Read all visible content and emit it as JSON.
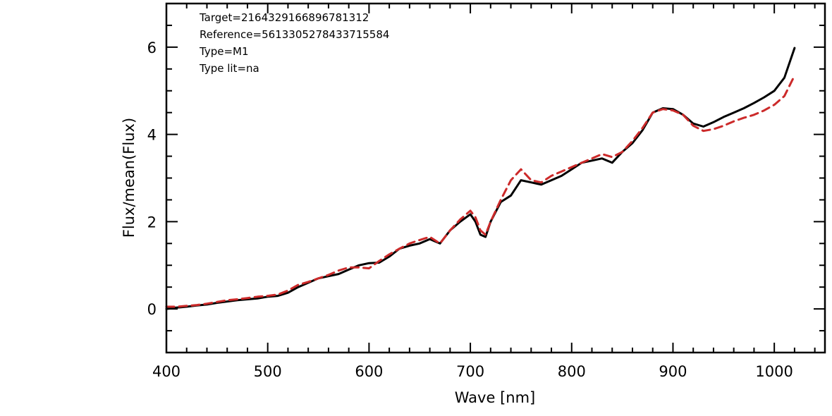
{
  "chart_data": {
    "type": "line",
    "xlabel": "Wave [nm]",
    "ylabel": "Flux/mean(Flux)",
    "xlim": [
      400,
      1050
    ],
    "ylim": [
      -1,
      7
    ],
    "xticks": [
      "400",
      "500",
      "600",
      "700",
      "800",
      "900",
      "1000"
    ],
    "yticks": [
      "0",
      "2",
      "4",
      "6"
    ],
    "grid": false,
    "annotations": [
      "Target=2164329166896781312",
      "Reference=5613305278433715584",
      "Type=M1",
      "Type lit=na"
    ],
    "series": [
      {
        "style": "solid",
        "color": "#000000",
        "x": [
          400,
          410,
          420,
          430,
          440,
          450,
          460,
          470,
          480,
          490,
          500,
          510,
          520,
          530,
          540,
          550,
          560,
          570,
          580,
          590,
          600,
          610,
          620,
          630,
          640,
          650,
          660,
          665,
          670,
          675,
          680,
          690,
          700,
          705,
          710,
          715,
          720,
          730,
          740,
          750,
          760,
          770,
          780,
          790,
          800,
          810,
          820,
          830,
          840,
          850,
          860,
          870,
          880,
          890,
          900,
          910,
          920,
          930,
          940,
          950,
          960,
          970,
          980,
          990,
          1000,
          1010,
          1020
        ],
        "y": [
          0.0,
          0.03,
          0.05,
          0.08,
          0.1,
          0.14,
          0.17,
          0.2,
          0.22,
          0.24,
          0.28,
          0.3,
          0.37,
          0.5,
          0.6,
          0.7,
          0.75,
          0.8,
          0.9,
          1.0,
          1.05,
          1.06,
          1.2,
          1.38,
          1.45,
          1.5,
          1.6,
          1.55,
          1.5,
          1.65,
          1.8,
          2.0,
          2.17,
          2.0,
          1.7,
          1.65,
          2.0,
          2.45,
          2.6,
          2.95,
          2.9,
          2.85,
          2.95,
          3.05,
          3.2,
          3.35,
          3.4,
          3.45,
          3.35,
          3.6,
          3.8,
          4.1,
          4.5,
          4.6,
          4.58,
          4.45,
          4.25,
          4.18,
          4.28,
          4.4,
          4.5,
          4.6,
          4.72,
          4.85,
          5.0,
          5.3,
          5.98
        ]
      },
      {
        "style": "dashed",
        "color": "#cc2a2a",
        "x": [
          400,
          410,
          420,
          430,
          440,
          450,
          460,
          470,
          480,
          490,
          500,
          510,
          520,
          530,
          540,
          550,
          560,
          570,
          580,
          590,
          600,
          610,
          620,
          630,
          640,
          650,
          660,
          670,
          680,
          690,
          700,
          705,
          710,
          715,
          720,
          730,
          740,
          750,
          760,
          770,
          780,
          790,
          800,
          810,
          820,
          830,
          840,
          850,
          860,
          870,
          880,
          890,
          900,
          910,
          920,
          930,
          940,
          950,
          960,
          970,
          980,
          990,
          1000,
          1010,
          1020
        ],
        "y": [
          0.05,
          0.05,
          0.07,
          0.09,
          0.12,
          0.16,
          0.2,
          0.22,
          0.25,
          0.28,
          0.3,
          0.33,
          0.42,
          0.55,
          0.62,
          0.7,
          0.78,
          0.88,
          0.95,
          0.95,
          0.93,
          1.1,
          1.25,
          1.38,
          1.5,
          1.58,
          1.65,
          1.5,
          1.8,
          2.05,
          2.25,
          2.1,
          1.8,
          1.7,
          2.0,
          2.5,
          2.95,
          3.2,
          2.95,
          2.9,
          3.05,
          3.15,
          3.25,
          3.35,
          3.45,
          3.55,
          3.48,
          3.6,
          3.85,
          4.15,
          4.5,
          4.58,
          4.55,
          4.45,
          4.2,
          4.08,
          4.12,
          4.2,
          4.3,
          4.38,
          4.45,
          4.55,
          4.68,
          4.88,
          5.35
        ]
      }
    ]
  }
}
